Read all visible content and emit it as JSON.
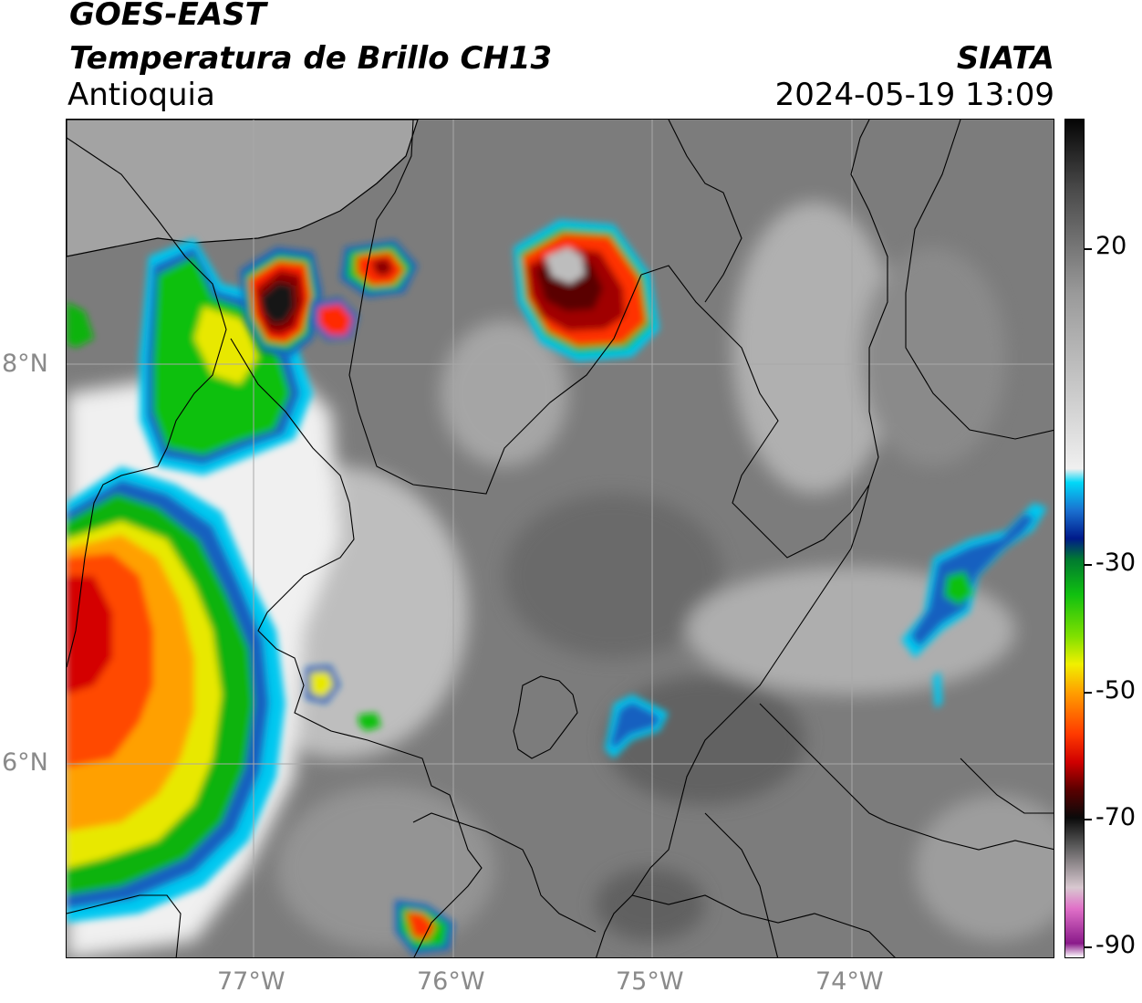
{
  "header": {
    "satellite": "GOES-EAST",
    "product": "Temperatura de Brillo CH13",
    "region": "Antioquia",
    "organization": "SIATA",
    "datetime": "2024-05-19 13:09"
  },
  "axes": {
    "lat_labels": [
      "8°N",
      "6°N"
    ],
    "lon_labels": [
      "77°W",
      "76°W",
      "75°W",
      "74°W"
    ]
  },
  "colorbar": {
    "tick_labels": [
      "20",
      "-30",
      "-50",
      "-70",
      "-90"
    ],
    "range": [
      -90,
      30
    ],
    "stops": [
      {
        "value": -90,
        "color": "#ffffff"
      },
      {
        "value": -88,
        "color": "#8a1a8a"
      },
      {
        "value": -83,
        "color": "#e070c8"
      },
      {
        "value": -80,
        "color": "#d8c8d0"
      },
      {
        "value": -74,
        "color": "#5a5a5a"
      },
      {
        "value": -70,
        "color": "#0a0a0a"
      },
      {
        "value": -66,
        "color": "#5a0000"
      },
      {
        "value": -62,
        "color": "#d00000"
      },
      {
        "value": -58,
        "color": "#ff3a00"
      },
      {
        "value": -52,
        "color": "#ffa000"
      },
      {
        "value": -48,
        "color": "#f0f000"
      },
      {
        "value": -44,
        "color": "#80e000"
      },
      {
        "value": -38,
        "color": "#10c010"
      },
      {
        "value": -33,
        "color": "#007a30"
      },
      {
        "value": -30,
        "color": "#001a8a"
      },
      {
        "value": -26,
        "color": "#1a70d0"
      },
      {
        "value": -22,
        "color": "#00d8f8"
      },
      {
        "value": -20,
        "color": "#f0f0f0"
      },
      {
        "value": 5,
        "color": "#9a9a9a"
      },
      {
        "value": 20,
        "color": "#4a4a4a"
      },
      {
        "value": 30,
        "color": "#050505"
      }
    ]
  },
  "map_colors": {
    "background_gray": "#7c7c7c",
    "sea_gray": "#a0a0a0",
    "border_color": "#000000",
    "gridline_color": "#a8a8a8"
  }
}
